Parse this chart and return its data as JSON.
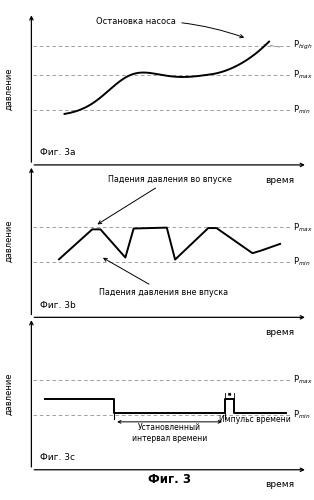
{
  "fig_width": 3.14,
  "fig_height": 5.0,
  "dpi": 100,
  "bg_color": "#ffffff",
  "subplot_labels": [
    "Фиг. 3a",
    "Фиг. 3b",
    "Фиг. 3c"
  ],
  "xlabel": "время",
  "ylabel": "давление",
  "fig_label": "Фиг. 3",
  "p_high_label": "P$_{high}$",
  "p_max_label": "P$_{max}$",
  "p_min_label": "P$_{min}$",
  "annotation_3a": "Остановка насоса",
  "annotation_3b_1": "Падения давления во впуске",
  "annotation_3b_2": "Падения давления вне впуска",
  "annotation_3c_1": "Установленный\nинтервал времени",
  "annotation_3c_2": "Импульс времени",
  "line_color": "#000000",
  "dashed_color": "#999999",
  "p_high": 0.82,
  "p_max": 0.62,
  "p_min": 0.38
}
